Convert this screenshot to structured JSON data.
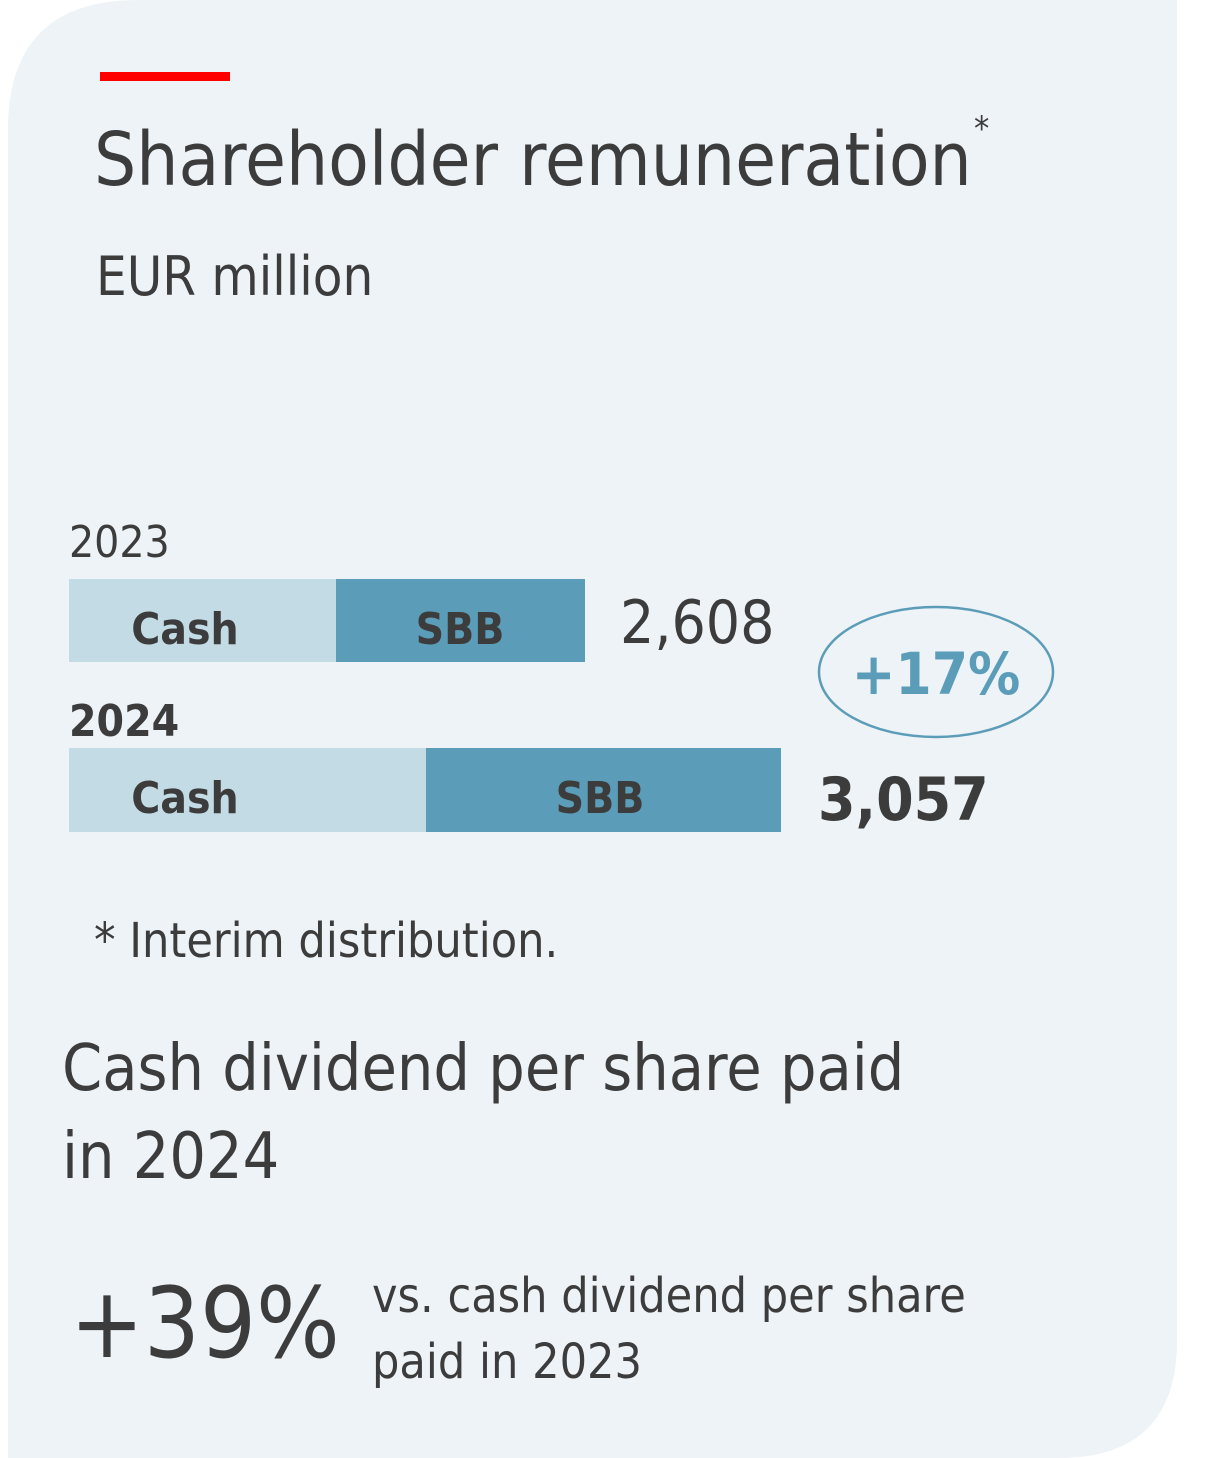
{
  "header": {
    "title": "Shareholder remuneration",
    "title_mark": "*",
    "subtitle": "EUR million"
  },
  "bars": [
    {
      "year": "2023",
      "segments": [
        "Cash",
        "SBB"
      ],
      "total": "2,608"
    },
    {
      "year": "2024",
      "segments": [
        "Cash",
        "SBB"
      ],
      "total": "3,057"
    }
  ],
  "change": "+17%",
  "footnote": "* Interim distribution.",
  "dividend": {
    "heading_lines": [
      "Cash dividend per share paid",
      "in 2024"
    ],
    "change": "+39%",
    "note_lines": [
      "vs. cash dividend per share",
      "paid in 2023"
    ]
  }
}
